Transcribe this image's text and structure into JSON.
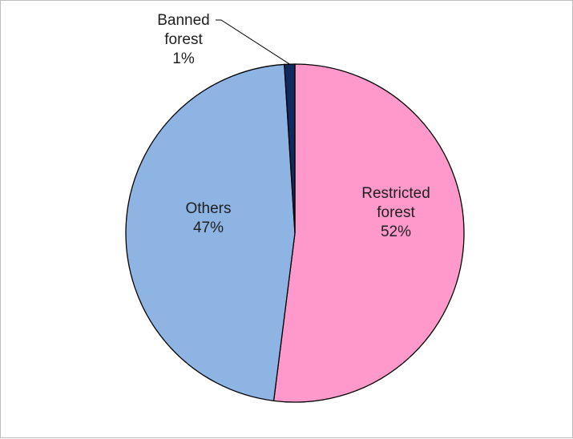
{
  "chart_data": {
    "type": "pie",
    "start_angle_deg": 0,
    "direction": "clockwise",
    "slices": [
      {
        "label_lines": [
          "Restricted",
          "forest",
          "52%"
        ],
        "value": 52,
        "color": "#ff99cc"
      },
      {
        "label_lines": [
          "Others",
          "47%"
        ],
        "value": 47,
        "color": "#8eb4e3"
      },
      {
        "label_lines": [
          "Banned",
          "forest",
          "1%"
        ],
        "value": 1,
        "color": "#0f2a5f"
      }
    ],
    "slice_border_color": "#000000",
    "legend": "none",
    "title": ""
  }
}
